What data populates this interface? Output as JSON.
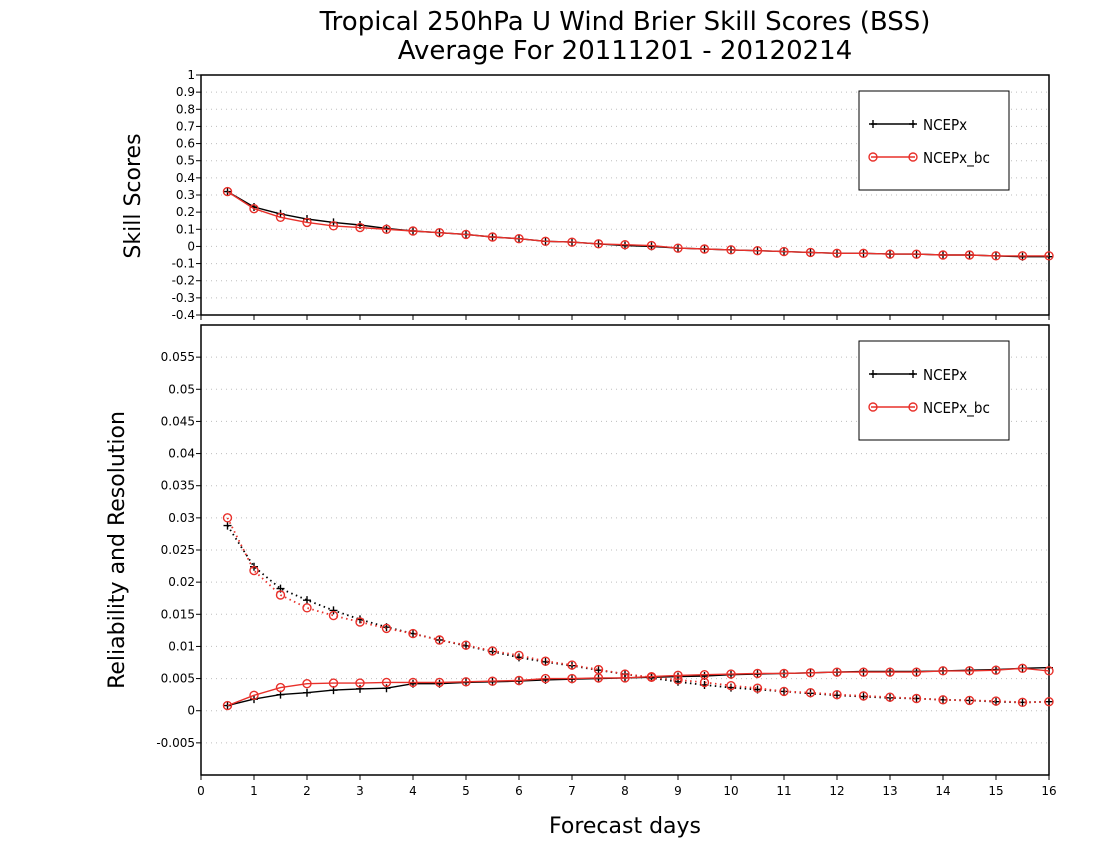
{
  "title": {
    "line1": "Tropical 250hPa U Wind Brier Skill Scores (BSS)",
    "line2": "Average For 20111201 - 20120214"
  },
  "xlabel": "Forecast days",
  "colors": {
    "ncep": "#000000",
    "ncep_bc": "#e8302a"
  },
  "chart_data": [
    {
      "type": "line",
      "ylabel": "Skill Scores",
      "xlim": [
        0,
        16
      ],
      "ylim": [
        -0.4,
        1
      ],
      "yticks": [
        "-0.4",
        "-0.3",
        "-0.2",
        "-0.1",
        "0",
        "0.1",
        "0.2",
        "0.3",
        "0.4",
        "0.5",
        "0.6",
        "0.7",
        "0.8",
        "0.9",
        "1"
      ],
      "grid": true,
      "legend_position": "top-right",
      "x": [
        0.5,
        1,
        1.5,
        2,
        2.5,
        3,
        3.5,
        4,
        4.5,
        5,
        5.5,
        6,
        6.5,
        7,
        7.5,
        8,
        8.5,
        9,
        9.5,
        10,
        10.5,
        11,
        11.5,
        12,
        12.5,
        13,
        13.5,
        14,
        14.5,
        15,
        15.5,
        16
      ],
      "series": [
        {
          "name": "NCEPx",
          "style": "solid",
          "marker": "plus",
          "values": [
            0.32,
            0.23,
            0.19,
            0.16,
            0.14,
            0.125,
            0.105,
            0.09,
            0.08,
            0.07,
            0.055,
            0.045,
            0.03,
            0.025,
            0.015,
            0.005,
            0,
            -0.01,
            -0.015,
            -0.02,
            -0.025,
            -0.03,
            -0.035,
            -0.04,
            -0.04,
            -0.045,
            -0.045,
            -0.05,
            -0.05,
            -0.055,
            -0.06,
            -0.06
          ]
        },
        {
          "name": "NCEPx_bc",
          "style": "solid",
          "marker": "circle",
          "values": [
            0.32,
            0.22,
            0.17,
            0.14,
            0.12,
            0.11,
            0.1,
            0.09,
            0.08,
            0.07,
            0.055,
            0.045,
            0.03,
            0.025,
            0.015,
            0.01,
            0.005,
            -0.01,
            -0.015,
            -0.02,
            -0.025,
            -0.03,
            -0.035,
            -0.04,
            -0.04,
            -0.045,
            -0.045,
            -0.05,
            -0.05,
            -0.055,
            -0.055,
            -0.055
          ]
        }
      ]
    },
    {
      "type": "line",
      "ylabel": "Reliability and Resolution",
      "xlim": [
        0,
        16
      ],
      "ylim": [
        -0.01,
        0.06
      ],
      "yticks": [
        "-0.005",
        "0",
        "0.005",
        "0.01",
        "0.015",
        "0.02",
        "0.025",
        "0.03",
        "0.035",
        "0.04",
        "0.045",
        "0.05",
        "0.055"
      ],
      "xticks": [
        "0",
        "1",
        "2",
        "3",
        "4",
        "5",
        "6",
        "7",
        "8",
        "9",
        "10",
        "11",
        "12",
        "13",
        "14",
        "15",
        "16"
      ],
      "grid": true,
      "legend_position": "top-right",
      "x": [
        0.5,
        1,
        1.5,
        2,
        2.5,
        3,
        3.5,
        4,
        4.5,
        5,
        5.5,
        6,
        6.5,
        7,
        7.5,
        8,
        8.5,
        9,
        9.5,
        10,
        10.5,
        11,
        11.5,
        12,
        12.5,
        13,
        13.5,
        14,
        14.5,
        15,
        15.5,
        16
      ],
      "series": [
        {
          "name": "NCEPx",
          "metric": "resolution",
          "style": "solid",
          "marker": "plus",
          "values": [
            0.0008,
            0.0018,
            0.0025,
            0.0028,
            0.0032,
            0.0034,
            0.0035,
            0.0042,
            0.0042,
            0.0044,
            0.0045,
            0.0046,
            0.0048,
            0.0049,
            0.005,
            0.0051,
            0.0052,
            0.0053,
            0.0054,
            0.0056,
            0.0057,
            0.0058,
            0.0059,
            0.006,
            0.0061,
            0.0061,
            0.0061,
            0.0062,
            0.0063,
            0.0064,
            0.0066,
            0.0067
          ]
        },
        {
          "name": "NCEPx_bc",
          "metric": "resolution",
          "style": "solid",
          "marker": "circle",
          "values": [
            0.0008,
            0.0024,
            0.0036,
            0.0042,
            0.0043,
            0.0043,
            0.0044,
            0.0044,
            0.0044,
            0.0045,
            0.0046,
            0.0047,
            0.005,
            0.005,
            0.0051,
            0.0051,
            0.0053,
            0.0055,
            0.0056,
            0.0057,
            0.0058,
            0.0058,
            0.0059,
            0.006,
            0.006,
            0.006,
            0.006,
            0.0062,
            0.0062,
            0.0063,
            0.0066,
            0.0062
          ]
        },
        {
          "name": "NCEPx",
          "metric": "reliability",
          "style": "dotted",
          "marker": "plus",
          "values": [
            0.0288,
            0.0224,
            0.019,
            0.0172,
            0.0156,
            0.0142,
            0.013,
            0.012,
            0.011,
            0.0101,
            0.0092,
            0.0083,
            0.0076,
            0.007,
            0.0063,
            0.0057,
            0.0051,
            0.0045,
            0.004,
            0.0036,
            0.0033,
            0.003,
            0.0027,
            0.0024,
            0.0022,
            0.002,
            0.0019,
            0.0017,
            0.0016,
            0.0014,
            0.0013,
            0.0014
          ]
        },
        {
          "name": "NCEPx_bc",
          "metric": "reliability",
          "style": "dotted",
          "marker": "circle",
          "values": [
            0.03,
            0.0218,
            0.018,
            0.016,
            0.0148,
            0.0138,
            0.0128,
            0.012,
            0.011,
            0.0102,
            0.0093,
            0.0086,
            0.0077,
            0.0071,
            0.0064,
            0.0057,
            0.0052,
            0.0048,
            0.0044,
            0.0039,
            0.0035,
            0.003,
            0.0028,
            0.0025,
            0.0023,
            0.0021,
            0.0019,
            0.0017,
            0.0016,
            0.0015,
            0.0013,
            0.0014
          ]
        }
      ]
    }
  ]
}
